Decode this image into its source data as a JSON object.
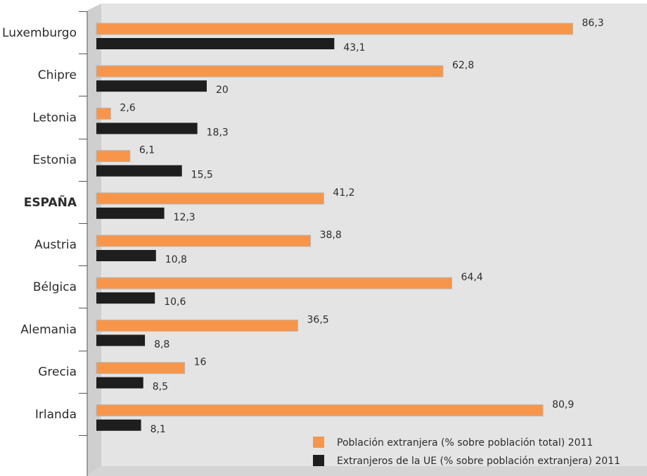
{
  "chart_data": {
    "type": "bar",
    "orientation": "horizontal",
    "categories": [
      "Luxemburgo",
      "Chipre",
      "Letonia",
      "Estonia",
      "ESPAÑA",
      "Austria",
      "Bélgica",
      "Alemania",
      "Grecia",
      "Irlanda"
    ],
    "highlight_category": "ESPAÑA",
    "series": [
      {
        "name": "Población extranjera (% sobre población total) 2011",
        "color": "#f7964a",
        "values": [
          86.3,
          62.8,
          2.6,
          6.1,
          41.2,
          38.8,
          64.4,
          36.5,
          16,
          80.9
        ],
        "labels": [
          "86,3",
          "62,8",
          "2,6",
          "6,1",
          "41,2",
          "38,8",
          "64,4",
          "36,5",
          "16",
          "80,9"
        ]
      },
      {
        "name": "Extranjeros de la UE (% sobre población extranjera) 2011",
        "color": "#1e1e1e",
        "values": [
          43.1,
          20,
          18.3,
          15.5,
          12.3,
          10.8,
          10.6,
          8.8,
          8.5,
          8.1
        ],
        "labels": [
          "43,1",
          "20",
          "18,3",
          "15,5",
          "12,3",
          "10,8",
          "10,6",
          "8,8",
          "8,5",
          "8,1"
        ]
      }
    ],
    "xlim": [
      0,
      100
    ],
    "grid": false,
    "legend_position": "bottom-right",
    "background_color": "#e4e4e4"
  }
}
